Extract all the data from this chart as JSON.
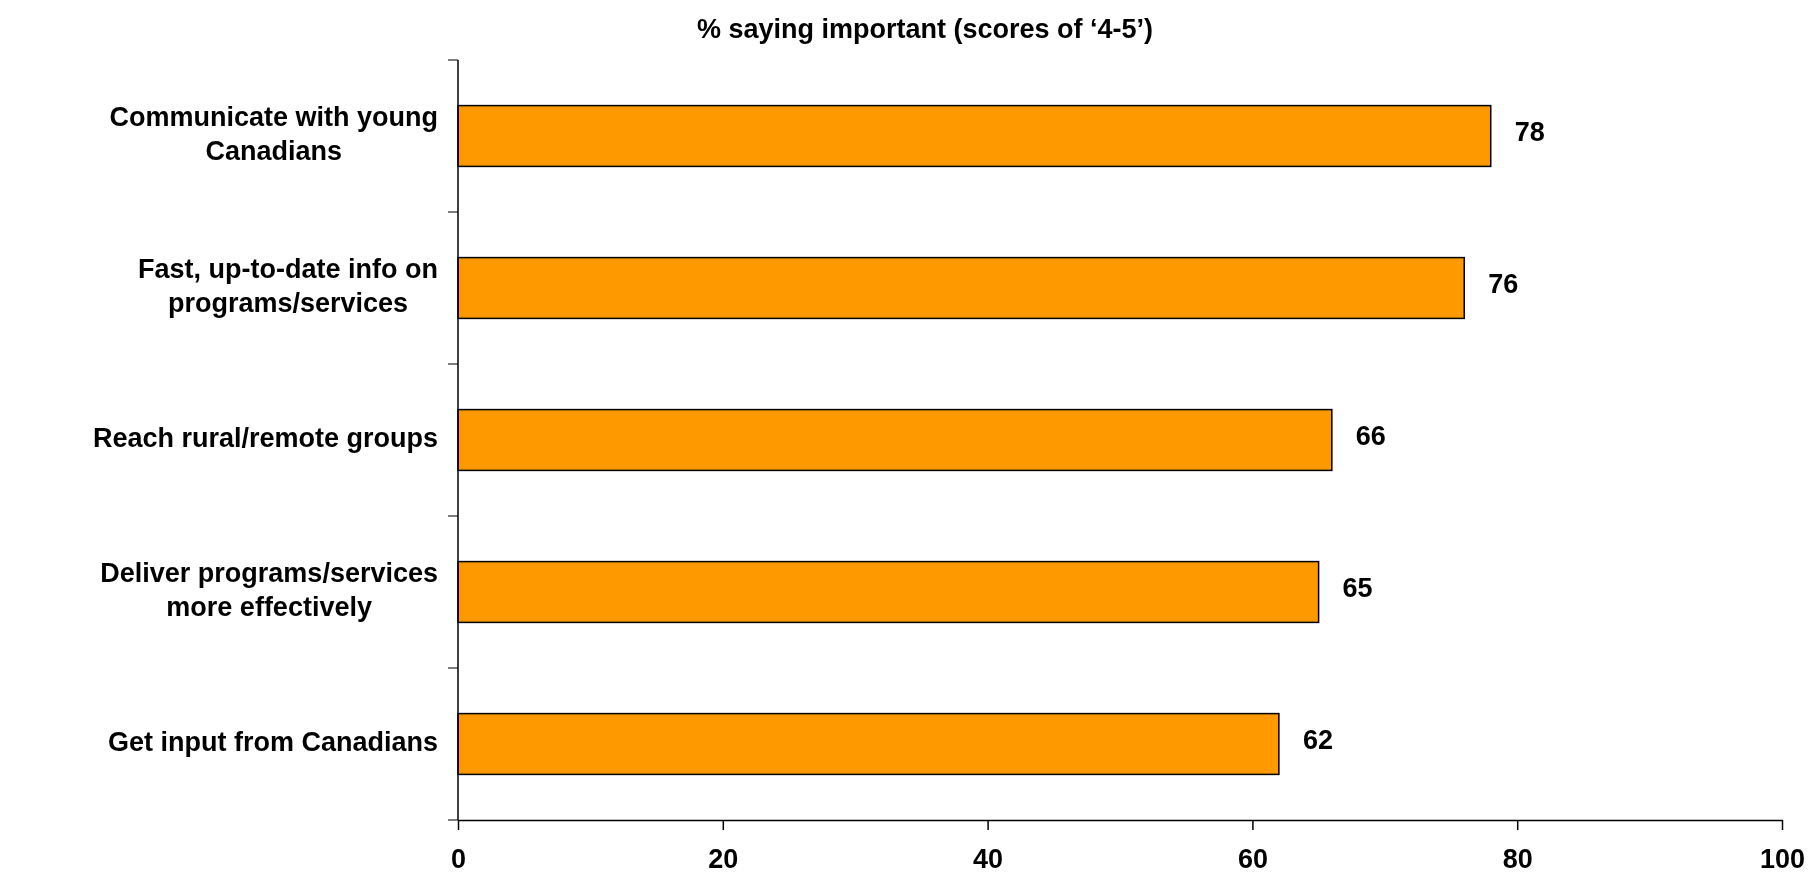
{
  "chart_data": {
    "type": "bar",
    "orientation": "horizontal",
    "title": "% saying important (scores of ‘4-5’)",
    "categories": [
      "Communicate with young Canadians",
      "Fast, up-to-date info on programs/services",
      "Reach rural/remote groups",
      "Deliver programs/services more effectively",
      "Get input from Canadians"
    ],
    "values": [
      78,
      76,
      66,
      65,
      62
    ],
    "color": "#ff9900",
    "xlim": [
      0,
      100
    ],
    "xticks": [
      0,
      20,
      40,
      60,
      80,
      100
    ],
    "data_labels": true
  }
}
